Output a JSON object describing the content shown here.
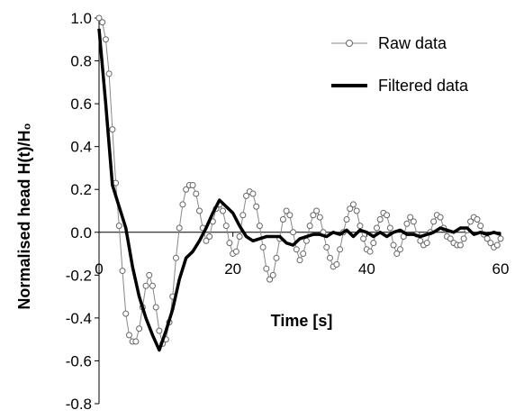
{
  "chart_data": {
    "type": "line",
    "title": "",
    "xlabel": "Time [s]",
    "ylabel": "Normalised head H(t)/H₀",
    "xlim": [
      0,
      60
    ],
    "ylim": [
      -0.8,
      1.0
    ],
    "x_ticks": [
      "0",
      "20",
      "40",
      "60"
    ],
    "y_ticks": [
      "1.0",
      "0.8",
      "0.6",
      "0.4",
      "0.2",
      "0.0",
      "-0.2",
      "-0.4",
      "-0.6",
      "-0.8"
    ],
    "grid": false,
    "legend_position": "top-right",
    "series": [
      {
        "name": "Raw data",
        "style": "thin line with open circle markers",
        "color": "#888888",
        "x": [
          0,
          0.5,
          1,
          1.5,
          2,
          2.5,
          3,
          3.5,
          4,
          4.5,
          5,
          5.5,
          6,
          6.5,
          7,
          7.5,
          8,
          8.5,
          9,
          9.5,
          10,
          10.5,
          11,
          11.5,
          12,
          12.5,
          13,
          13.5,
          14,
          14.5,
          15,
          15.5,
          16,
          16.5,
          17,
          17.5,
          18,
          18.5,
          19,
          19.5,
          20,
          20.5,
          21,
          21.5,
          22,
          22.5,
          23,
          23.5,
          24,
          24.5,
          25,
          25.5,
          26,
          26.5,
          27,
          27.5,
          28,
          28.5,
          29,
          29.5,
          30,
          30.5,
          31,
          31.5,
          32,
          32.5,
          33,
          33.5,
          34,
          34.5,
          35,
          35.5,
          36,
          36.5,
          37,
          37.5,
          38,
          38.5,
          39,
          39.5,
          40,
          40.5,
          41,
          41.5,
          42,
          42.5,
          43,
          43.5,
          44,
          44.5,
          45,
          45.5,
          46,
          46.5,
          47,
          47.5,
          48,
          48.5,
          49,
          49.5,
          50,
          50.5,
          51,
          51.5,
          52,
          52.5,
          53,
          53.5,
          54,
          54.5,
          55,
          55.5,
          56,
          56.5,
          57,
          57.5,
          58,
          58.5,
          59,
          59.5,
          60
        ],
        "y": [
          1.0,
          0.98,
          0.9,
          0.74,
          0.48,
          0.23,
          0.03,
          -0.18,
          -0.38,
          -0.48,
          -0.51,
          -0.51,
          -0.45,
          -0.35,
          -0.25,
          -0.2,
          -0.25,
          -0.35,
          -0.46,
          -0.52,
          -0.5,
          -0.42,
          -0.3,
          -0.12,
          0.02,
          0.13,
          0.2,
          0.22,
          0.22,
          0.18,
          0.1,
          0.02,
          -0.04,
          -0.02,
          0.05,
          0.11,
          0.13,
          0.1,
          0.03,
          -0.05,
          -0.1,
          -0.09,
          -0.02,
          0.08,
          0.17,
          0.19,
          0.18,
          0.12,
          0.03,
          -0.07,
          -0.17,
          -0.22,
          -0.2,
          -0.12,
          -0.03,
          0.06,
          0.1,
          0.08,
          0.0,
          -0.08,
          -0.13,
          -0.1,
          -0.04,
          0.03,
          0.08,
          0.1,
          0.07,
          0.0,
          -0.07,
          -0.12,
          -0.16,
          -0.15,
          -0.08,
          0.0,
          0.06,
          0.11,
          0.13,
          0.1,
          0.03,
          -0.03,
          -0.08,
          -0.09,
          -0.05,
          0.02,
          0.06,
          0.09,
          0.08,
          0.02,
          -0.06,
          -0.1,
          -0.08,
          -0.02,
          0.04,
          0.07,
          0.05,
          -0.01,
          -0.04,
          -0.06,
          -0.05,
          0.0,
          0.05,
          0.08,
          0.07,
          0.02,
          -0.02,
          -0.03,
          -0.05,
          -0.06,
          -0.06,
          -0.03,
          0.01,
          0.05,
          0.07,
          0.06,
          0.03,
          -0.01,
          -0.03,
          -0.05,
          -0.07,
          -0.06,
          -0.03
        ]
      },
      {
        "name": "Filtered data",
        "style": "thick solid line",
        "color": "#000000",
        "x": [
          0,
          1,
          2,
          3,
          4,
          5,
          6,
          7,
          8,
          9,
          10,
          11,
          12,
          13,
          14,
          15,
          16,
          17,
          18,
          19,
          20,
          21,
          22,
          23,
          24,
          25,
          26,
          27,
          28,
          29,
          30,
          31,
          32,
          33,
          34,
          35,
          36,
          37,
          38,
          39,
          40,
          41,
          42,
          43,
          44,
          45,
          46,
          47,
          48,
          49,
          50,
          51,
          52,
          53,
          54,
          55,
          56,
          57,
          58,
          59,
          60
        ],
        "y": [
          0.95,
          0.6,
          0.22,
          0.12,
          0.02,
          -0.16,
          -0.3,
          -0.4,
          -0.48,
          -0.55,
          -0.46,
          -0.36,
          -0.22,
          -0.12,
          -0.09,
          -0.04,
          0.02,
          0.09,
          0.15,
          0.12,
          0.09,
          0.03,
          -0.02,
          -0.04,
          -0.03,
          -0.02,
          -0.02,
          -0.02,
          -0.05,
          -0.06,
          -0.03,
          -0.02,
          -0.01,
          -0.01,
          -0.02,
          0.0,
          -0.01,
          0.01,
          -0.02,
          0.01,
          0.0,
          -0.02,
          0.0,
          -0.02,
          0.0,
          0.01,
          -0.01,
          -0.01,
          -0.02,
          -0.01,
          0.0,
          0.02,
          0.01,
          0.0,
          0.02,
          0.02,
          -0.01,
          0.0,
          -0.01,
          0.0,
          -0.01
        ]
      }
    ]
  }
}
